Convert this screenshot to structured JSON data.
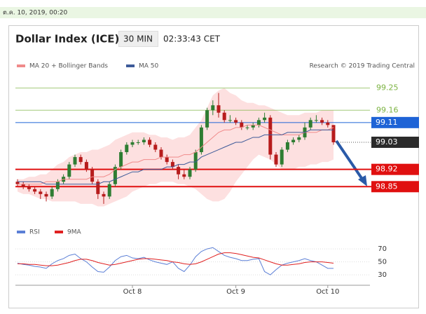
{
  "banner": "ต.ค. 10, 2019, 00:20",
  "chart_data": [
    {
      "type": "candlestick",
      "title": "Dollar Index (ICE)",
      "timeframe": "30 MIN",
      "time": "02:33:43 CET",
      "source": "Research © 2019 Trading Central",
      "categories": [
        null,
        null,
        null,
        null,
        null,
        null,
        null,
        null,
        null,
        null,
        null,
        null,
        null,
        null,
        null,
        null,
        null,
        null,
        null,
        null,
        "Oct 8",
        null,
        null,
        null,
        null,
        null,
        null,
        null,
        null,
        null,
        null,
        null,
        null,
        null,
        null,
        null,
        null,
        null,
        "Oct 9",
        null,
        null,
        null,
        null,
        null,
        null,
        null,
        null,
        null,
        null,
        null,
        null,
        null,
        null,
        null,
        "Oct 10",
        null
      ],
      "open": [
        98.87,
        98.86,
        98.85,
        98.84,
        98.83,
        98.82,
        98.81,
        98.84,
        98.87,
        98.89,
        98.94,
        98.97,
        98.95,
        98.92,
        98.87,
        98.82,
        98.81,
        98.86,
        98.93,
        98.99,
        99.02,
        99.03,
        99.03,
        99.04,
        99.02,
        99.0,
        98.97,
        98.95,
        98.93,
        98.9,
        98.89,
        98.92,
        98.99,
        99.09,
        99.16,
        99.18,
        99.15,
        99.12,
        99.12,
        99.11,
        99.09,
        99.09,
        99.1,
        99.12,
        99.13,
        98.98,
        98.94,
        99.0,
        99.03,
        99.04,
        99.05,
        99.09,
        99.12,
        99.12,
        99.11,
        99.1
      ],
      "high": [
        98.88,
        98.87,
        98.86,
        98.85,
        98.84,
        98.83,
        98.85,
        98.88,
        98.9,
        98.95,
        98.98,
        98.98,
        98.96,
        98.93,
        98.88,
        98.83,
        98.87,
        98.94,
        99.0,
        99.03,
        99.04,
        99.04,
        99.05,
        99.05,
        99.03,
        99.01,
        98.98,
        98.96,
        98.94,
        98.92,
        98.93,
        99.0,
        99.1,
        99.17,
        99.2,
        99.23,
        99.16,
        99.14,
        99.13,
        99.12,
        99.1,
        99.11,
        99.13,
        99.15,
        99.14,
        98.99,
        99.01,
        99.04,
        99.05,
        99.06,
        99.11,
        99.13,
        99.14,
        99.13,
        99.12,
        99.1
      ],
      "low": [
        98.85,
        98.84,
        98.83,
        98.82,
        98.8,
        98.79,
        98.8,
        98.83,
        98.86,
        98.88,
        98.93,
        98.94,
        98.91,
        98.86,
        98.8,
        98.78,
        98.8,
        98.85,
        98.92,
        98.98,
        99.01,
        99.02,
        99.02,
        99.01,
        98.99,
        98.96,
        98.94,
        98.92,
        98.88,
        98.88,
        98.88,
        98.91,
        98.98,
        99.08,
        99.14,
        99.13,
        99.11,
        99.11,
        99.1,
        99.08,
        99.08,
        99.08,
        99.09,
        99.11,
        98.96,
        98.93,
        98.93,
        98.99,
        99.02,
        99.03,
        99.04,
        99.08,
        99.11,
        99.1,
        99.09,
        99.02
      ],
      "close": [
        98.86,
        98.85,
        98.84,
        98.83,
        98.82,
        98.81,
        98.84,
        98.87,
        98.89,
        98.94,
        98.97,
        98.95,
        98.92,
        98.87,
        98.82,
        98.81,
        98.86,
        98.93,
        98.99,
        99.02,
        99.03,
        99.03,
        99.04,
        99.02,
        99.0,
        98.97,
        98.95,
        98.93,
        98.9,
        98.89,
        98.92,
        98.99,
        99.09,
        99.16,
        99.18,
        99.15,
        99.12,
        99.12,
        99.11,
        99.09,
        99.09,
        99.1,
        99.12,
        99.13,
        98.98,
        98.94,
        99.0,
        99.03,
        99.04,
        99.05,
        99.09,
        99.12,
        99.12,
        99.11,
        99.1,
        99.03
      ],
      "up_color": "#2e7d32",
      "down_color": "#b71c1c",
      "series": [
        {
          "name": "MA 20 + Bollinger Bands",
          "color": "#f08a8a",
          "band_color": "#fde0e0",
          "values": [
            98.86,
            98.86,
            98.86,
            98.86,
            98.86,
            98.87,
            98.87,
            98.87,
            98.88,
            98.88,
            98.88,
            98.88,
            98.88,
            98.89,
            98.89,
            98.89,
            98.9,
            98.92,
            98.93,
            98.94,
            98.95,
            98.95,
            98.96,
            98.96,
            98.96,
            98.97,
            98.97,
            98.97,
            98.97,
            98.98,
            98.98,
            98.99,
            99.01,
            99.03,
            99.05,
            99.07,
            99.08,
            99.08,
            99.09,
            99.09,
            99.1,
            99.1,
            99.1,
            99.09,
            99.08,
            99.07,
            99.06,
            99.06,
            99.06,
            99.06,
            99.07,
            99.07,
            99.07,
            99.08,
            99.08,
            99.09
          ],
          "upper": [
            98.88,
            98.88,
            98.89,
            98.89,
            98.9,
            98.9,
            98.92,
            98.94,
            98.95,
            98.97,
            98.98,
            98.99,
            98.99,
            99.0,
            99.0,
            99.01,
            99.02,
            99.04,
            99.05,
            99.06,
            99.07,
            99.07,
            99.07,
            99.06,
            99.06,
            99.05,
            99.05,
            99.04,
            99.05,
            99.05,
            99.06,
            99.09,
            99.12,
            99.17,
            99.22,
            99.24,
            99.25,
            99.23,
            99.22,
            99.2,
            99.19,
            99.19,
            99.18,
            99.18,
            99.17,
            99.16,
            99.15,
            99.14,
            99.14,
            99.14,
            99.15,
            99.15,
            99.15,
            99.16,
            99.16,
            99.16
          ],
          "lower": [
            98.83,
            98.82,
            98.82,
            98.81,
            98.8,
            98.8,
            98.79,
            98.79,
            98.79,
            98.79,
            98.79,
            98.78,
            98.78,
            98.78,
            98.77,
            98.77,
            98.78,
            98.79,
            98.8,
            98.81,
            98.83,
            98.84,
            98.85,
            98.86,
            98.86,
            98.87,
            98.87,
            98.87,
            98.86,
            98.86,
            98.85,
            98.84,
            98.82,
            98.8,
            98.79,
            98.79,
            98.8,
            98.83,
            98.87,
            98.9,
            98.93,
            98.96,
            98.98,
            98.97,
            98.96,
            98.94,
            98.92,
            98.92,
            98.92,
            98.93,
            98.93,
            98.94,
            98.94,
            98.95,
            98.95,
            98.96
          ]
        },
        {
          "name": "MA 50",
          "color": "#3d5a99",
          "values": [
            98.87,
            98.87,
            98.87,
            98.87,
            98.87,
            98.86,
            98.86,
            98.86,
            98.86,
            98.86,
            98.86,
            98.86,
            98.86,
            98.86,
            98.86,
            98.87,
            98.87,
            98.88,
            98.89,
            98.9,
            98.91,
            98.91,
            98.92,
            98.92,
            98.92,
            98.92,
            98.93,
            98.93,
            98.94,
            98.94,
            98.95,
            98.95,
            98.97,
            98.98,
            98.99,
            99.0,
            99.01,
            99.02,
            99.03,
            99.03,
            99.04,
            99.05,
            99.05,
            99.06,
            99.06,
            99.06,
            99.06,
            99.07,
            99.07,
            99.07,
            99.07,
            99.08,
            99.08,
            99.08,
            99.08,
            99.08
          ]
        }
      ],
      "ylim": [
        98.74,
        99.3
      ],
      "levels": [
        {
          "value": 99.25,
          "color": "#7cb342",
          "boxed": false
        },
        {
          "value": 99.16,
          "color": "#7cb342",
          "boxed": false
        },
        {
          "value": 99.11,
          "color": "#1e63d6",
          "boxed": true
        },
        {
          "value": 98.92,
          "color": "#e01010",
          "boxed": true
        },
        {
          "value": 98.85,
          "color": "#e01010",
          "boxed": true
        }
      ],
      "last": {
        "value": 99.03,
        "color": "#2b2b2b"
      }
    },
    {
      "type": "line",
      "series": [
        {
          "name": "RSI",
          "color": "#5b7fd6",
          "values": [
            48,
            46,
            45,
            43,
            42,
            40,
            47,
            52,
            55,
            60,
            62,
            55,
            50,
            42,
            35,
            34,
            42,
            52,
            58,
            60,
            56,
            55,
            57,
            53,
            50,
            48,
            46,
            50,
            40,
            35,
            45,
            58,
            66,
            70,
            72,
            66,
            60,
            57,
            55,
            52,
            52,
            54,
            55,
            35,
            30,
            38,
            45,
            48,
            50,
            52,
            55,
            52,
            50,
            45,
            40,
            40
          ]
        },
        {
          "name": "9MA",
          "color": "#e02020",
          "values": [
            47,
            47,
            46,
            46,
            45,
            44,
            44,
            45,
            47,
            49,
            52,
            54,
            54,
            52,
            49,
            47,
            45,
            46,
            48,
            50,
            52,
            54,
            55,
            55,
            54,
            53,
            52,
            50,
            49,
            47,
            46,
            47,
            50,
            54,
            58,
            62,
            64,
            64,
            63,
            61,
            59,
            57,
            56,
            53,
            50,
            47,
            45,
            45,
            46,
            47,
            49,
            50,
            50,
            50,
            49,
            48
          ]
        }
      ],
      "ylim": [
        22,
        82
      ],
      "yticks": [
        70,
        50,
        30
      ]
    }
  ]
}
